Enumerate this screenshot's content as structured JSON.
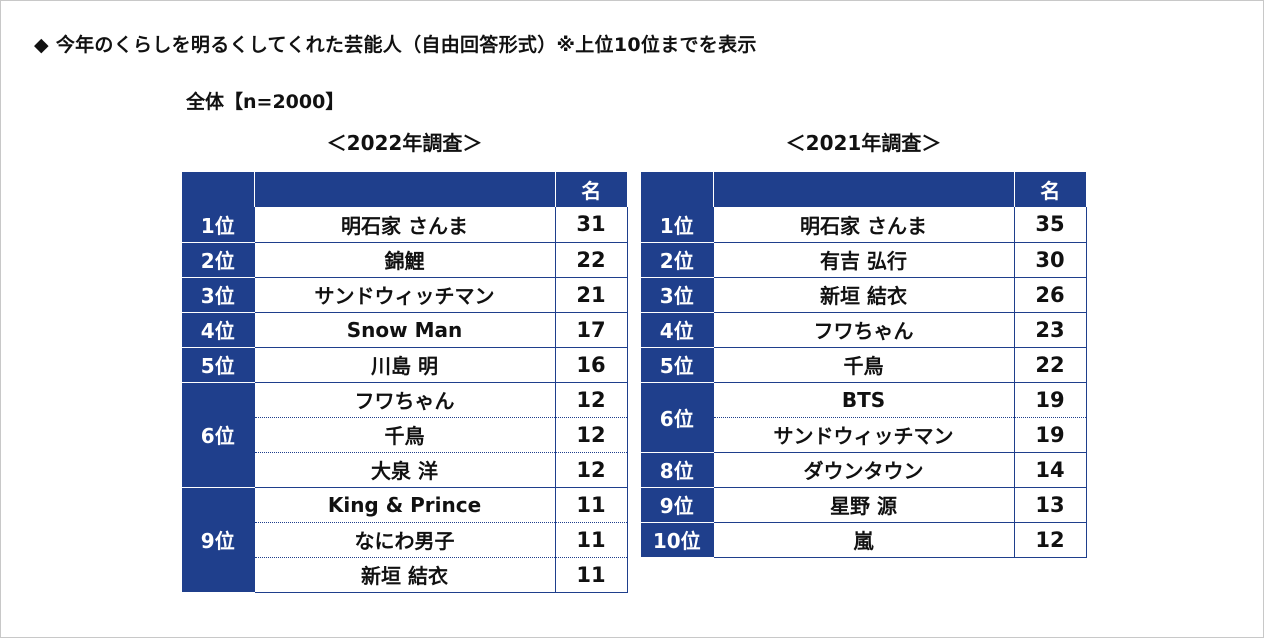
{
  "title": "◆ 今年のくらしを明るくしてくれた芸能人（自由回答形式）※上位10位までを表示",
  "scope": "全体【n=2000】",
  "count_header": "名",
  "tables": [
    {
      "heading": "＜2022年調査＞",
      "groups": [
        {
          "rank": "1位",
          "entries": [
            {
              "name": "明石家 さんま",
              "count": "31"
            }
          ]
        },
        {
          "rank": "2位",
          "entries": [
            {
              "name": "錦鯉",
              "count": "22"
            }
          ]
        },
        {
          "rank": "3位",
          "entries": [
            {
              "name": "サンドウィッチマン",
              "count": "21"
            }
          ]
        },
        {
          "rank": "4位",
          "entries": [
            {
              "name": "Snow Man",
              "count": "17"
            }
          ]
        },
        {
          "rank": "5位",
          "entries": [
            {
              "name": "川島 明",
              "count": "16"
            }
          ]
        },
        {
          "rank": "6位",
          "entries": [
            {
              "name": "フワちゃん",
              "count": "12"
            },
            {
              "name": "千鳥",
              "count": "12"
            },
            {
              "name": "大泉 洋",
              "count": "12"
            }
          ]
        },
        {
          "rank": "9位",
          "entries": [
            {
              "name": "King & Prince",
              "count": "11"
            },
            {
              "name": "なにわ男子",
              "count": "11"
            },
            {
              "name": "新垣 結衣",
              "count": "11"
            }
          ]
        }
      ]
    },
    {
      "heading": "＜2021年調査＞",
      "groups": [
        {
          "rank": "1位",
          "entries": [
            {
              "name": "明石家 さんま",
              "count": "35"
            }
          ]
        },
        {
          "rank": "2位",
          "entries": [
            {
              "name": "有吉 弘行",
              "count": "30"
            }
          ]
        },
        {
          "rank": "3位",
          "entries": [
            {
              "name": "新垣 結衣",
              "count": "26"
            }
          ]
        },
        {
          "rank": "4位",
          "entries": [
            {
              "name": "フワちゃん",
              "count": "23"
            }
          ]
        },
        {
          "rank": "5位",
          "entries": [
            {
              "name": "千鳥",
              "count": "22"
            }
          ]
        },
        {
          "rank": "6位",
          "entries": [
            {
              "name": "BTS",
              "count": "19"
            },
            {
              "name": "サンドウィッチマン",
              "count": "19"
            }
          ]
        },
        {
          "rank": "8位",
          "entries": [
            {
              "name": "ダウンタウン",
              "count": "14"
            }
          ]
        },
        {
          "rank": "9位",
          "entries": [
            {
              "name": "星野 源",
              "count": "13"
            }
          ]
        },
        {
          "rank": "10位",
          "entries": [
            {
              "name": "嵐",
              "count": "12"
            }
          ]
        }
      ]
    }
  ],
  "colors": {
    "header": "#1f3f8c",
    "text": "#111111"
  }
}
